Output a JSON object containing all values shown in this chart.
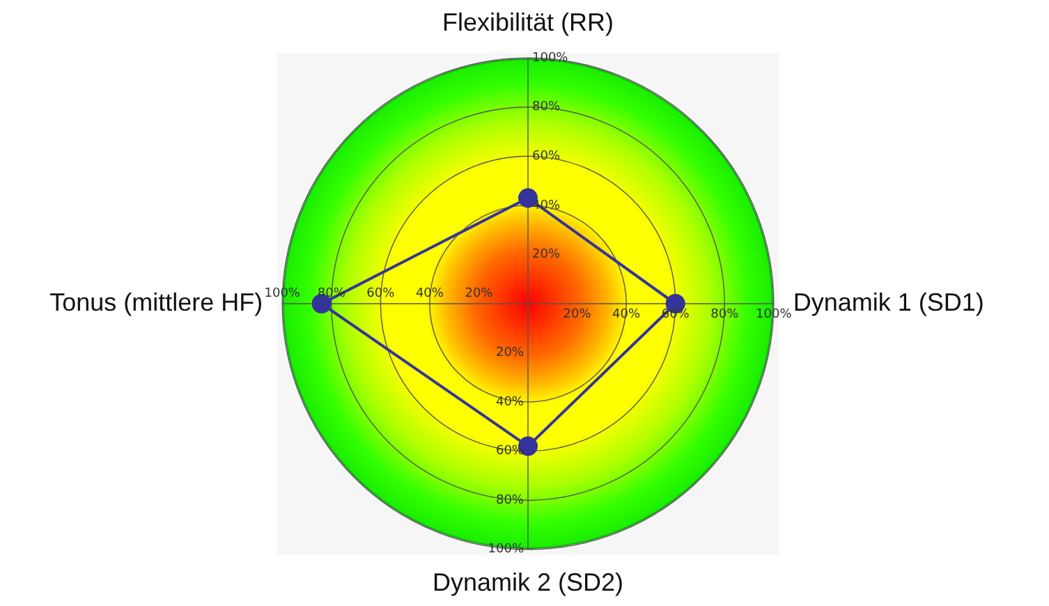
{
  "chart_data": {
    "type": "radar",
    "categories": [
      "Flexibilität (RR)",
      "Dynamik 1 (SD1)",
      "Dynamik 2 (SD2)",
      "Tonus (mittlere HF)"
    ],
    "series": [
      {
        "color": "#34349a",
        "values": [
          43,
          60,
          58,
          84
        ]
      }
    ],
    "ylim": [
      0,
      100
    ],
    "yticks": [
      {
        "value": 20,
        "label": "20%"
      },
      {
        "value": 40,
        "label": "40%"
      },
      {
        "value": 60,
        "label": "60%"
      },
      {
        "value": 80,
        "label": "80%"
      },
      {
        "value": 100,
        "label": "100%"
      }
    ],
    "grid": true,
    "marker": "circle"
  }
}
